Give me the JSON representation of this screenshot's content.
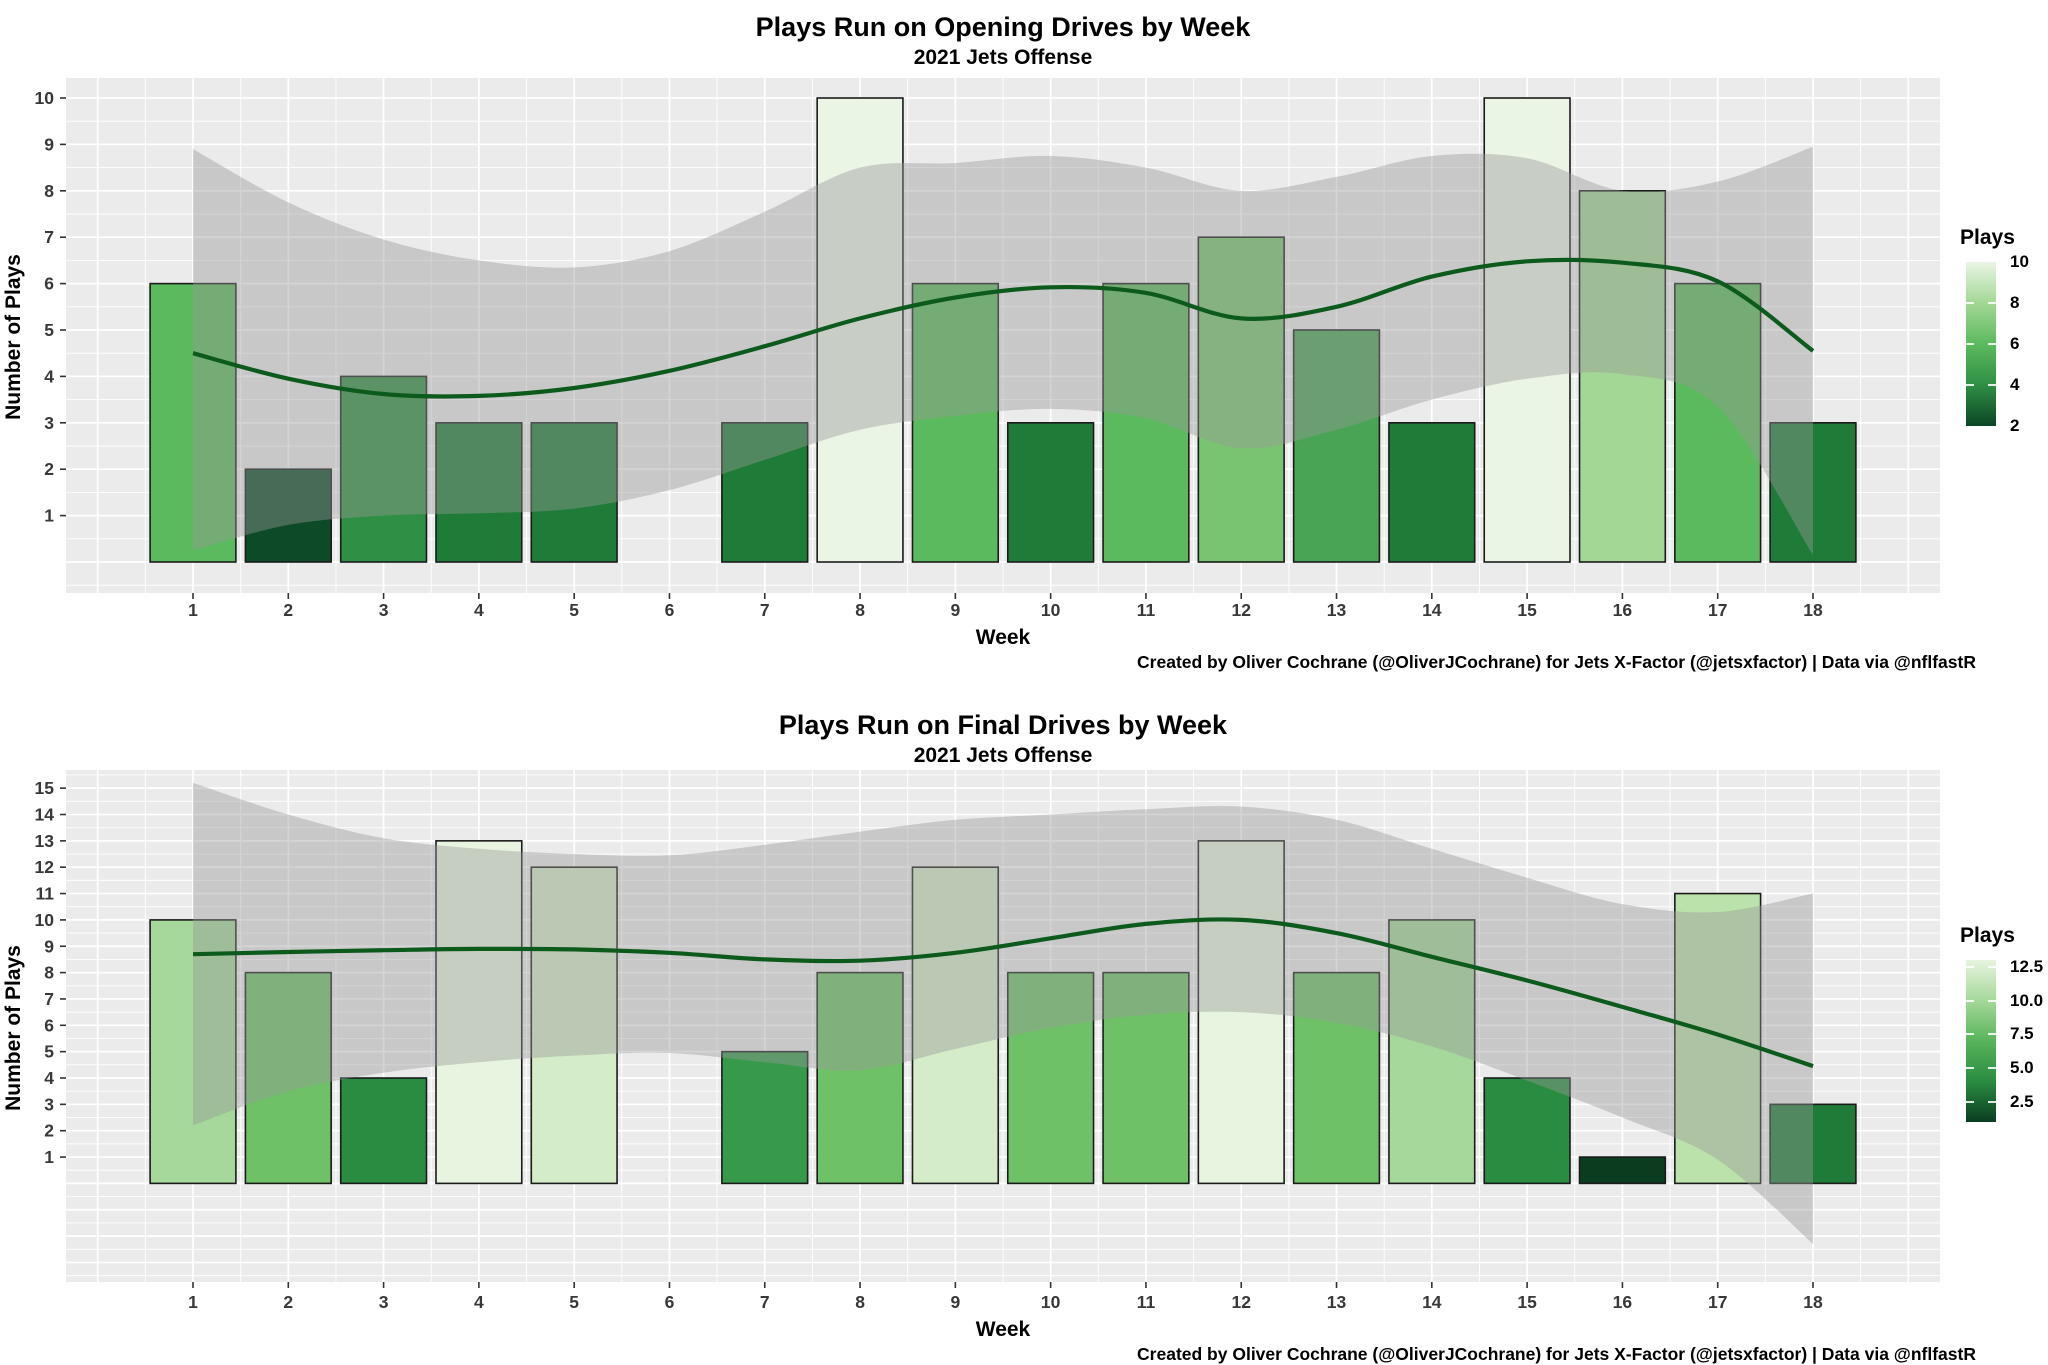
{
  "page_caption": "Created by Oliver Cochrane (@OliverJCochrane) for Jets X-Factor (@jetsxfactor) | Data via @nflfastR",
  "chart_data": [
    {
      "type": "bar",
      "title": "Plays Run on Opening Drives by Week",
      "subtitle": "2021 Jets Offense",
      "xlabel": "Week",
      "ylabel": "Number of Plays",
      "caption": "Created by Oliver Cochrane (@OliverJCochrane) for Jets X-Factor (@jetsxfactor) | Data via @nflfastR",
      "categories": [
        1,
        2,
        3,
        4,
        5,
        6,
        7,
        8,
        9,
        10,
        11,
        12,
        13,
        14,
        15,
        16,
        17,
        18
      ],
      "values": [
        6,
        2,
        4,
        3,
        3,
        null,
        3,
        10,
        6,
        3,
        6,
        7,
        5,
        3,
        10,
        8,
        6,
        3
      ],
      "bar_colors": [
        "#5cba5e",
        "#0d4a28",
        "#2f8f44",
        "#1e7c38",
        "#1e7c38",
        null,
        "#1e7c38",
        "#eaf5e5",
        "#5cba5e",
        "#1e7c38",
        "#5cba5e",
        "#79c471",
        "#49a455",
        "#1e7c38",
        "#eaf5e5",
        "#a3d795",
        "#5cba5e",
        "#1e7c38"
      ],
      "x_ticks": [
        1,
        2,
        3,
        4,
        5,
        6,
        7,
        8,
        9,
        10,
        11,
        12,
        13,
        14,
        15,
        16,
        17,
        18
      ],
      "y_ticks": [
        1,
        2,
        3,
        4,
        5,
        6,
        7,
        8,
        9,
        10
      ],
      "ylim": [
        -0.67,
        10.43
      ],
      "grid": true,
      "panel_color": "#ebebeb",
      "grid_color": "#ffffff",
      "bar_outline": "#1a1a1a",
      "smooth_line": [
        4.5,
        3.95,
        3.62,
        3.58,
        3.75,
        4.12,
        4.65,
        5.25,
        5.7,
        5.92,
        5.8,
        5.25,
        5.5,
        6.15,
        6.48,
        6.45,
        6.05,
        4.55
      ],
      "ribbon_upper": [
        8.9,
        7.75,
        6.95,
        6.5,
        6.35,
        6.7,
        7.55,
        8.5,
        8.6,
        8.75,
        8.5,
        8.0,
        8.3,
        8.75,
        8.7,
        8.0,
        8.2,
        8.95
      ],
      "ribbon_lower": [
        0.25,
        0.8,
        1.0,
        1.05,
        1.15,
        1.55,
        2.2,
        2.85,
        3.15,
        3.3,
        3.1,
        2.45,
        2.85,
        3.5,
        3.95,
        4.05,
        3.35,
        0.15
      ],
      "line_color": "#0d5a1d",
      "ribbon_color": "#999999",
      "ribbon_opacity": 0.42,
      "legend": {
        "title": "Plays",
        "position": "right",
        "domain": [
          2,
          10
        ],
        "ticks": [
          10,
          8,
          6,
          4,
          2
        ],
        "tick_labels": [
          "10",
          "8",
          "6",
          "4",
          "2"
        ],
        "gradient_stops": [
          {
            "v": 2,
            "c": "#0b4626"
          },
          {
            "v": 4,
            "c": "#2f8f44"
          },
          {
            "v": 6,
            "c": "#5cba5e"
          },
          {
            "v": 8,
            "c": "#a3d795"
          },
          {
            "v": 10,
            "c": "#eaf5e5"
          }
        ]
      }
    },
    {
      "type": "bar",
      "title": "Plays Run on Final Drives by Week",
      "subtitle": "2021 Jets Offense",
      "xlabel": "Week",
      "ylabel": "Number of Plays",
      "caption": "Created by Oliver Cochrane (@OliverJCochrane) for Jets X-Factor (@jetsxfactor) | Data via @nflfastR",
      "categories": [
        1,
        2,
        3,
        4,
        5,
        6,
        7,
        8,
        9,
        10,
        11,
        12,
        13,
        14,
        15,
        16,
        17,
        18
      ],
      "values": [
        10,
        8,
        4,
        13,
        12,
        null,
        5,
        8,
        12,
        8,
        8,
        13,
        8,
        10,
        4,
        1,
        11,
        3
      ],
      "bar_colors": [
        "#a5d89a",
        "#6fc168",
        "#2a8c41",
        "#e7f4df",
        "#d4edc8",
        null,
        "#379a4b",
        "#6fc168",
        "#d4edc8",
        "#6fc168",
        "#6fc168",
        "#e7f4df",
        "#6fc168",
        "#a5d89a",
        "#2a8c41",
        "#0a3d20",
        "#bce2ab",
        "#1e7c38"
      ],
      "x_ticks": [
        1,
        2,
        3,
        4,
        5,
        6,
        7,
        8,
        9,
        10,
        11,
        12,
        13,
        14,
        15,
        16,
        17,
        18
      ],
      "y_ticks": [
        1,
        2,
        3,
        4,
        5,
        6,
        7,
        8,
        9,
        10,
        11,
        12,
        13,
        14,
        15
      ],
      "ylim": [
        -3.74,
        15.69
      ],
      "grid": true,
      "panel_color": "#ebebeb",
      "grid_color": "#ffffff",
      "bar_outline": "#1a1a1a",
      "smooth_line": [
        8.7,
        8.78,
        8.85,
        8.9,
        8.88,
        8.75,
        8.5,
        8.45,
        8.75,
        9.3,
        9.85,
        10.0,
        9.5,
        8.6,
        7.7,
        6.7,
        5.65,
        4.45
      ],
      "ribbon_upper": [
        15.2,
        14.0,
        13.1,
        12.7,
        12.5,
        12.45,
        12.85,
        13.35,
        13.8,
        14.0,
        14.2,
        14.3,
        13.8,
        12.7,
        11.6,
        10.6,
        10.3,
        11.0
      ],
      "ribbon_lower": [
        2.2,
        3.5,
        4.2,
        4.6,
        4.85,
        4.95,
        4.6,
        4.3,
        5.1,
        5.9,
        6.4,
        6.5,
        6.1,
        5.2,
        3.9,
        2.5,
        0.9,
        -2.3
      ],
      "line_color": "#0d5a1d",
      "ribbon_color": "#999999",
      "ribbon_opacity": 0.42,
      "legend": {
        "title": "Plays",
        "position": "right",
        "domain": [
          1,
          13
        ],
        "ticks": [
          12.5,
          10.0,
          7.5,
          5.0,
          2.5
        ],
        "tick_labels": [
          "12.5",
          "10.0",
          "7.5",
          "5.0",
          "2.5"
        ],
        "gradient_stops": [
          {
            "v": 1,
            "c": "#0a3d20"
          },
          {
            "v": 4,
            "c": "#2a8c41"
          },
          {
            "v": 7,
            "c": "#58b45b"
          },
          {
            "v": 10,
            "c": "#a5d89a"
          },
          {
            "v": 13,
            "c": "#e7f4df"
          }
        ]
      }
    }
  ]
}
